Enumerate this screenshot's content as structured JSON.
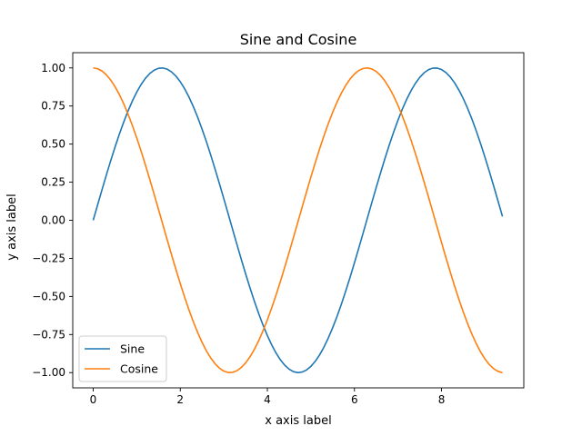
{
  "chart_data": {
    "type": "line",
    "title": "Sine and Cosine",
    "xlabel": "x axis label",
    "ylabel": "y axis label",
    "xlim": [
      -0.47,
      9.89
    ],
    "ylim": [
      -1.1,
      1.1
    ],
    "xticks": [
      0,
      2,
      4,
      6,
      8
    ],
    "xtick_labels": [
      "0",
      "2",
      "4",
      "6",
      "8"
    ],
    "yticks": [
      -1.0,
      -0.75,
      -0.5,
      -0.25,
      0.0,
      0.25,
      0.5,
      0.75,
      1.0
    ],
    "ytick_labels": [
      "−1.00",
      "−0.75",
      "−0.50",
      "−0.25",
      "0.00",
      "0.25",
      "0.50",
      "0.75",
      "1.00"
    ],
    "grid": false,
    "legend_position": "lower-left",
    "x": [
      0.0,
      0.1,
      0.2,
      0.3,
      0.4,
      0.5,
      0.6,
      0.7,
      0.8,
      0.9,
      1.0,
      1.1,
      1.2,
      1.3,
      1.4,
      1.5,
      1.6,
      1.7,
      1.8,
      1.9,
      2.0,
      2.1,
      2.2,
      2.3,
      2.4,
      2.5,
      2.6,
      2.7,
      2.8,
      2.9,
      3.0,
      3.1,
      3.2,
      3.3,
      3.4,
      3.5,
      3.6,
      3.7,
      3.8,
      3.9,
      4.0,
      4.1,
      4.2,
      4.3,
      4.4,
      4.5,
      4.6,
      4.7,
      4.8,
      4.9,
      5.0,
      5.1,
      5.2,
      5.3,
      5.4,
      5.5,
      5.6,
      5.7,
      5.8,
      5.9,
      6.0,
      6.1,
      6.2,
      6.3,
      6.4,
      6.5,
      6.6,
      6.7,
      6.8,
      6.9,
      7.0,
      7.1,
      7.2,
      7.3,
      7.4,
      7.5,
      7.6,
      7.7,
      7.8,
      7.9,
      8.0,
      8.1,
      8.2,
      8.3,
      8.4,
      8.5,
      8.6,
      8.7,
      8.8,
      8.9,
      9.0,
      9.1,
      9.2,
      9.3,
      9.4
    ],
    "series": [
      {
        "name": "Sine",
        "color": "#1f77b4",
        "values": [
          0.0,
          0.0998,
          0.1987,
          0.2955,
          0.3894,
          0.4794,
          0.5646,
          0.6442,
          0.7174,
          0.7833,
          0.8415,
          0.8912,
          0.932,
          0.9636,
          0.9854,
          0.9975,
          0.9996,
          0.9917,
          0.9738,
          0.9463,
          0.9093,
          0.8632,
          0.8085,
          0.7457,
          0.6755,
          0.5985,
          0.5155,
          0.4274,
          0.335,
          0.2392,
          0.1411,
          0.0416,
          -0.0584,
          -0.1577,
          -0.2555,
          -0.3508,
          -0.4425,
          -0.5298,
          -0.6119,
          -0.6878,
          -0.7568,
          -0.8183,
          -0.8716,
          -0.9162,
          -0.9516,
          -0.9775,
          -0.9937,
          -0.9999,
          -0.9962,
          -0.9825,
          -0.9589,
          -0.9258,
          -0.8835,
          -0.8323,
          -0.7728,
          -0.7055,
          -0.6313,
          -0.5507,
          -0.4646,
          -0.3739,
          -0.2794,
          -0.1822,
          -0.0831,
          0.0168,
          0.1165,
          0.2151,
          0.3115,
          0.4048,
          0.4941,
          0.5784,
          0.657,
          0.729,
          0.7937,
          0.8504,
          0.8987,
          0.938,
          0.9679,
          0.9882,
          0.9985,
          0.9989,
          0.9894,
          0.9699,
          0.9407,
          0.9022,
          0.8546,
          0.7985,
          0.7344,
          0.663,
          0.5849,
          0.501,
          0.4121,
          0.3191,
          0.2229,
          0.1245,
          0.0248
        ]
      },
      {
        "name": "Cosine",
        "color": "#ff7f0e",
        "values": [
          1.0,
          0.995,
          0.9801,
          0.9553,
          0.9211,
          0.8776,
          0.8253,
          0.7648,
          0.6967,
          0.6216,
          0.5403,
          0.4536,
          0.3624,
          0.2675,
          0.17,
          0.0707,
          -0.0292,
          -0.1288,
          -0.2272,
          -0.3233,
          -0.4161,
          -0.5048,
          -0.5885,
          -0.6663,
          -0.7374,
          -0.8011,
          -0.8569,
          -0.9041,
          -0.9422,
          -0.971,
          -0.99,
          -0.9991,
          -0.9983,
          -0.9875,
          -0.9668,
          -0.9365,
          -0.8968,
          -0.8481,
          -0.791,
          -0.7259,
          -0.6536,
          -0.5748,
          -0.4903,
          -0.4008,
          -0.3073,
          -0.2108,
          -0.1122,
          -0.0124,
          0.0875,
          0.1865,
          0.2837,
          0.378,
          0.4685,
          0.5544,
          0.6347,
          0.7087,
          0.7756,
          0.8347,
          0.8855,
          0.9275,
          0.9602,
          0.9833,
          0.9965,
          0.9999,
          0.9932,
          0.9766,
          0.9502,
          0.9144,
          0.8694,
          0.8157,
          0.7539,
          0.6845,
          0.6084,
          0.5261,
          0.4385,
          0.3466,
          0.2513,
          0.1534,
          0.054,
          -0.046,
          -0.1455,
          -0.2435,
          -0.3392,
          -0.4314,
          -0.5193,
          -0.602,
          -0.6787,
          -0.7486,
          -0.8111,
          -0.8654,
          -0.9111,
          -0.9477,
          -0.9748,
          -0.9922,
          -0.9997
        ]
      }
    ]
  }
}
